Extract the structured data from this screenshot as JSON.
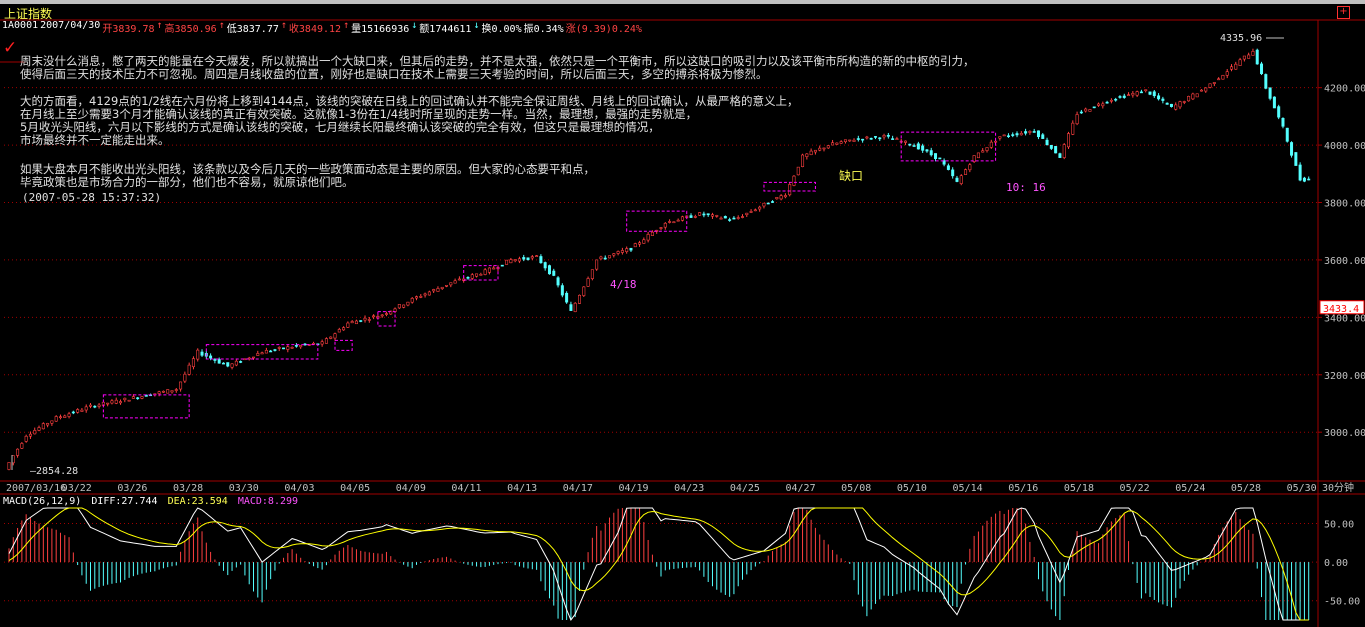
{
  "header": {
    "title": "上证指数",
    "code": "1A0001",
    "date": "2007/04/30",
    "open": "开3839.78",
    "high": "高3850.96",
    "low": "低3837.77",
    "close": "收3849.12",
    "volume": "量15166936",
    "amount": "额1744611",
    "turnover": "换0.00%",
    "amplitude": "振0.34%",
    "change": "涨(9.39)0.24%"
  },
  "commentary": {
    "para1": [
      "周末没什么消息，憋了两天的能量在今天爆发，所以就搞出一个大缺口来，但其后的走势，并不是太强，依然只是一个平衡市，所以这缺口的吸引力以及该平衡市所构造的新的中枢的引力，",
      "使得后面三天的技术压力不可忽视。周四是月线收盘的位置，刚好也是缺口在技术上需要三天考验的时间，所以后面三天，多空的搏杀将极为惨烈。"
    ],
    "para2": [
      "大的方面看，4129点的1/2线在六月份将上移到4144点，该线的突破在日线上的回试确认并不能完全保证周线、月线上的回试确认，从最严格的意义上，",
      "在月线上至少需要3个月才能确认该线的真正有效突破。这就像1-3份在1/4线时所呈现的走势一样。当然，最理想，最强的走势就是，",
      "5月收光头阳线，六月以下影线的方式是确认该线的突破，七月继续长阳最终确认该突破的完全有效，但这只是最理想的情况，",
      "市场最终并不一定能走出来。"
    ],
    "para3": [
      "如果大盘本月不能收出光头阳线，该条款以及今后几天的一些政策面动态是主要的原因。但大家的心态要平和点，",
      "毕竟政策也是市场合力的一部分，他们也不容易，就原谅他们吧。"
    ],
    "timestamp": "(2007-05-28 15:37:32)"
  },
  "annotations": {
    "low_label": "2854.28",
    "high_label": "4335.96",
    "current_price": "3433.4",
    "gap_label": "缺口",
    "date_418": "4/18",
    "time_1016": "10: 16"
  },
  "macd": {
    "name": "MACD(26,12,9)",
    "diff": "DIFF:27.744",
    "dea": "DEA:23.594",
    "macd": "MACD:8.299"
  },
  "chart_data": [
    {
      "type": "candlestick",
      "title": "上证指数",
      "period": "30分钟",
      "x_labels": [
        "2007/03/16",
        "03/22",
        "03/26",
        "03/28",
        "03/30",
        "04/03",
        "04/05",
        "04/09",
        "04/11",
        "04/13",
        "04/17",
        "04/19",
        "04/23",
        "04/25",
        "04/27",
        "05/08",
        "05/10",
        "05/14",
        "05/16",
        "05/18",
        "05/22",
        "05/24",
        "05/28",
        "05/30"
      ],
      "y_ticks": [
        3000,
        3200,
        3400,
        3600,
        3800,
        4000,
        4200
      ],
      "y_tick_labels": [
        "3000.00",
        "3200.00",
        "3400.00",
        "3600.00",
        "3800.00",
        "4000.00",
        "4200.00"
      ],
      "ylim": [
        2830,
        4380
      ],
      "period_label": "30分钟",
      "low": 2854.28,
      "high": 4335.96,
      "current": 3433.4,
      "keypoints": [
        [
          0,
          2870
        ],
        [
          5,
          2990
        ],
        [
          12,
          3050
        ],
        [
          20,
          3090
        ],
        [
          30,
          3120
        ],
        [
          40,
          3150
        ],
        [
          45,
          3280
        ],
        [
          52,
          3230
        ],
        [
          60,
          3280
        ],
        [
          68,
          3300
        ],
        [
          74,
          3310
        ],
        [
          80,
          3380
        ],
        [
          88,
          3410
        ],
        [
          96,
          3470
        ],
        [
          104,
          3520
        ],
        [
          112,
          3560
        ],
        [
          118,
          3600
        ],
        [
          124,
          3610
        ],
        [
          128,
          3540
        ],
        [
          132,
          3420
        ],
        [
          138,
          3600
        ],
        [
          146,
          3640
        ],
        [
          154,
          3730
        ],
        [
          162,
          3760
        ],
        [
          170,
          3740
        ],
        [
          178,
          3800
        ],
        [
          182,
          3830
        ],
        [
          186,
          3960
        ],
        [
          192,
          4000
        ],
        [
          198,
          4020
        ],
        [
          205,
          4030
        ],
        [
          212,
          4000
        ],
        [
          218,
          3950
        ],
        [
          222,
          3870
        ],
        [
          226,
          3960
        ],
        [
          232,
          4030
        ],
        [
          240,
          4050
        ],
        [
          246,
          3960
        ],
        [
          250,
          4110
        ],
        [
          258,
          4160
        ],
        [
          266,
          4190
        ],
        [
          272,
          4130
        ],
        [
          280,
          4200
        ],
        [
          286,
          4270
        ],
        [
          291,
          4330
        ],
        [
          294,
          4200
        ],
        [
          298,
          4060
        ],
        [
          302,
          3880
        ]
      ]
    },
    {
      "type": "histogram",
      "title": "MACD(26,12,9)",
      "y_ticks": [
        50,
        0,
        -50
      ],
      "y_tick_labels": [
        "50.00",
        "0.00",
        "-50.00"
      ],
      "ylim": [
        -75,
        70
      ],
      "series": [
        {
          "name": "DIFF",
          "value": 27.744
        },
        {
          "name": "DEA",
          "value": 23.594
        },
        {
          "name": "MACD",
          "value": 8.299
        }
      ]
    }
  ],
  "colors": {
    "up": "#ff4040",
    "down": "#54ffff",
    "grid": "#a00000",
    "box": "#ff00ff",
    "diff": "#ffffff",
    "dea": "#ffff00"
  }
}
